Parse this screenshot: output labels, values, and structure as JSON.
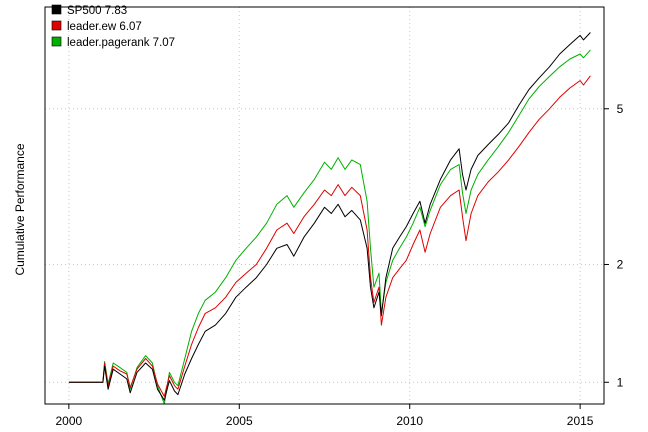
{
  "chart_data": {
    "type": "line",
    "title": "",
    "xlabel": "",
    "ylabel": "Cumulative Performance",
    "y_scale": "log",
    "x_range": [
      1999.3,
      2015.7
    ],
    "y_range": [
      0.88,
      9.1
    ],
    "x_ticks": [
      {
        "value": 2000,
        "label": "2000"
      },
      {
        "value": 2005,
        "label": "2005"
      },
      {
        "value": 2010,
        "label": "2010"
      },
      {
        "value": 2015,
        "label": "2015"
      }
    ],
    "y_ticks": [
      {
        "value": 1,
        "label": "1"
      },
      {
        "value": 2,
        "label": "2"
      },
      {
        "value": 5,
        "label": "5"
      }
    ],
    "y_axis_side": "right",
    "grid": true,
    "legend_position": "top-left",
    "legend": [
      {
        "label": "SP500 7.83",
        "color": "#000000"
      },
      {
        "label": "leader.ew 6.07",
        "color": "#e00000"
      },
      {
        "label": "leader.pagerank 7.07",
        "color": "#00b000"
      }
    ],
    "series": [
      {
        "name": "SP500",
        "color": "#000000",
        "x": [
          2000.0,
          2000.5,
          2001.0,
          2001.05,
          2001.15,
          2001.3,
          2001.5,
          2001.7,
          2001.8,
          2002.0,
          2002.25,
          2002.45,
          2002.6,
          2002.8,
          2002.95,
          2003.1,
          2003.2,
          2003.4,
          2003.6,
          2003.8,
          2004.0,
          2004.3,
          2004.6,
          2004.9,
          2005.2,
          2005.5,
          2005.8,
          2006.1,
          2006.4,
          2006.6,
          2006.9,
          2007.2,
          2007.5,
          2007.7,
          2007.9,
          2008.1,
          2008.3,
          2008.55,
          2008.75,
          2008.85,
          2008.95,
          2009.1,
          2009.17,
          2009.3,
          2009.5,
          2009.7,
          2009.9,
          2010.1,
          2010.3,
          2010.45,
          2010.6,
          2010.9,
          2011.2,
          2011.45,
          2011.55,
          2011.65,
          2011.8,
          2012.0,
          2012.3,
          2012.6,
          2012.9,
          2013.2,
          2013.5,
          2013.8,
          2014.1,
          2014.4,
          2014.7,
          2015.0,
          2015.1,
          2015.3
        ],
        "values": [
          1.0,
          1.0,
          1.0,
          1.1,
          0.96,
          1.08,
          1.05,
          1.02,
          0.94,
          1.06,
          1.12,
          1.08,
          0.96,
          0.9,
          1.01,
          0.95,
          0.93,
          1.05,
          1.15,
          1.25,
          1.35,
          1.4,
          1.5,
          1.65,
          1.75,
          1.85,
          2.0,
          2.2,
          2.25,
          2.1,
          2.35,
          2.55,
          2.8,
          2.7,
          2.85,
          2.65,
          2.75,
          2.6,
          2.2,
          1.75,
          1.55,
          1.7,
          1.48,
          1.85,
          2.2,
          2.35,
          2.5,
          2.7,
          2.9,
          2.55,
          2.85,
          3.3,
          3.7,
          3.95,
          3.4,
          3.1,
          3.5,
          3.8,
          4.05,
          4.3,
          4.6,
          5.1,
          5.6,
          6.0,
          6.4,
          6.9,
          7.3,
          7.7,
          7.5,
          7.83
        ]
      },
      {
        "name": "leader.ew",
        "color": "#e00000",
        "x": [
          2000.0,
          2000.5,
          2001.0,
          2001.05,
          2001.15,
          2001.3,
          2001.5,
          2001.7,
          2001.8,
          2002.0,
          2002.25,
          2002.45,
          2002.6,
          2002.8,
          2002.95,
          2003.1,
          2003.2,
          2003.4,
          2003.6,
          2003.8,
          2004.0,
          2004.3,
          2004.6,
          2004.9,
          2005.2,
          2005.5,
          2005.8,
          2006.1,
          2006.4,
          2006.6,
          2006.9,
          2007.2,
          2007.5,
          2007.7,
          2007.9,
          2008.1,
          2008.3,
          2008.55,
          2008.75,
          2008.85,
          2008.95,
          2009.1,
          2009.17,
          2009.3,
          2009.5,
          2009.7,
          2009.9,
          2010.1,
          2010.3,
          2010.45,
          2010.6,
          2010.9,
          2011.2,
          2011.45,
          2011.55,
          2011.65,
          2011.8,
          2012.0,
          2012.3,
          2012.6,
          2012.9,
          2013.2,
          2013.5,
          2013.8,
          2014.1,
          2014.4,
          2014.7,
          2015.0,
          2015.1,
          2015.3
        ],
        "values": [
          1.0,
          1.0,
          1.0,
          1.12,
          0.98,
          1.1,
          1.07,
          1.05,
          0.97,
          1.08,
          1.15,
          1.1,
          0.99,
          0.92,
          1.04,
          0.98,
          0.96,
          1.1,
          1.25,
          1.38,
          1.5,
          1.55,
          1.65,
          1.8,
          1.9,
          2.0,
          2.2,
          2.45,
          2.55,
          2.4,
          2.65,
          2.85,
          3.1,
          3.0,
          3.2,
          3.0,
          3.15,
          3.0,
          2.45,
          1.85,
          1.6,
          1.75,
          1.4,
          1.65,
          1.85,
          1.95,
          2.05,
          2.25,
          2.45,
          2.15,
          2.4,
          2.8,
          3.0,
          3.1,
          2.65,
          2.3,
          2.7,
          3.0,
          3.25,
          3.45,
          3.7,
          4.0,
          4.35,
          4.7,
          5.0,
          5.35,
          5.65,
          5.9,
          5.75,
          6.07
        ]
      },
      {
        "name": "leader.pagerank",
        "color": "#00b000",
        "x": [
          2000.0,
          2000.5,
          2001.0,
          2001.05,
          2001.15,
          2001.3,
          2001.5,
          2001.7,
          2001.8,
          2002.0,
          2002.25,
          2002.45,
          2002.6,
          2002.8,
          2002.95,
          2003.1,
          2003.2,
          2003.4,
          2003.6,
          2003.8,
          2004.0,
          2004.3,
          2004.6,
          2004.9,
          2005.2,
          2005.5,
          2005.8,
          2006.1,
          2006.4,
          2006.6,
          2006.9,
          2007.2,
          2007.5,
          2007.7,
          2007.9,
          2008.1,
          2008.3,
          2008.55,
          2008.75,
          2008.85,
          2008.95,
          2009.1,
          2009.17,
          2009.3,
          2009.5,
          2009.7,
          2009.9,
          2010.1,
          2010.3,
          2010.45,
          2010.6,
          2010.9,
          2011.2,
          2011.45,
          2011.55,
          2011.65,
          2011.8,
          2012.0,
          2012.3,
          2012.6,
          2012.9,
          2013.2,
          2013.5,
          2013.8,
          2014.1,
          2014.4,
          2014.7,
          2015.0,
          2015.1,
          2015.3
        ],
        "values": [
          1.0,
          1.0,
          1.0,
          1.13,
          0.99,
          1.12,
          1.09,
          1.06,
          0.96,
          1.09,
          1.17,
          1.12,
          0.98,
          0.88,
          1.06,
          1.0,
          0.98,
          1.15,
          1.35,
          1.5,
          1.62,
          1.7,
          1.85,
          2.05,
          2.2,
          2.35,
          2.55,
          2.85,
          3.0,
          2.8,
          3.05,
          3.3,
          3.65,
          3.5,
          3.75,
          3.5,
          3.7,
          3.6,
          2.9,
          2.2,
          1.75,
          1.9,
          1.5,
          1.8,
          2.05,
          2.2,
          2.35,
          2.55,
          2.8,
          2.5,
          2.75,
          3.2,
          3.5,
          3.6,
          3.05,
          2.7,
          3.1,
          3.4,
          3.7,
          4.0,
          4.35,
          4.8,
          5.3,
          5.7,
          6.05,
          6.4,
          6.7,
          6.9,
          6.75,
          7.07
        ]
      }
    ]
  }
}
